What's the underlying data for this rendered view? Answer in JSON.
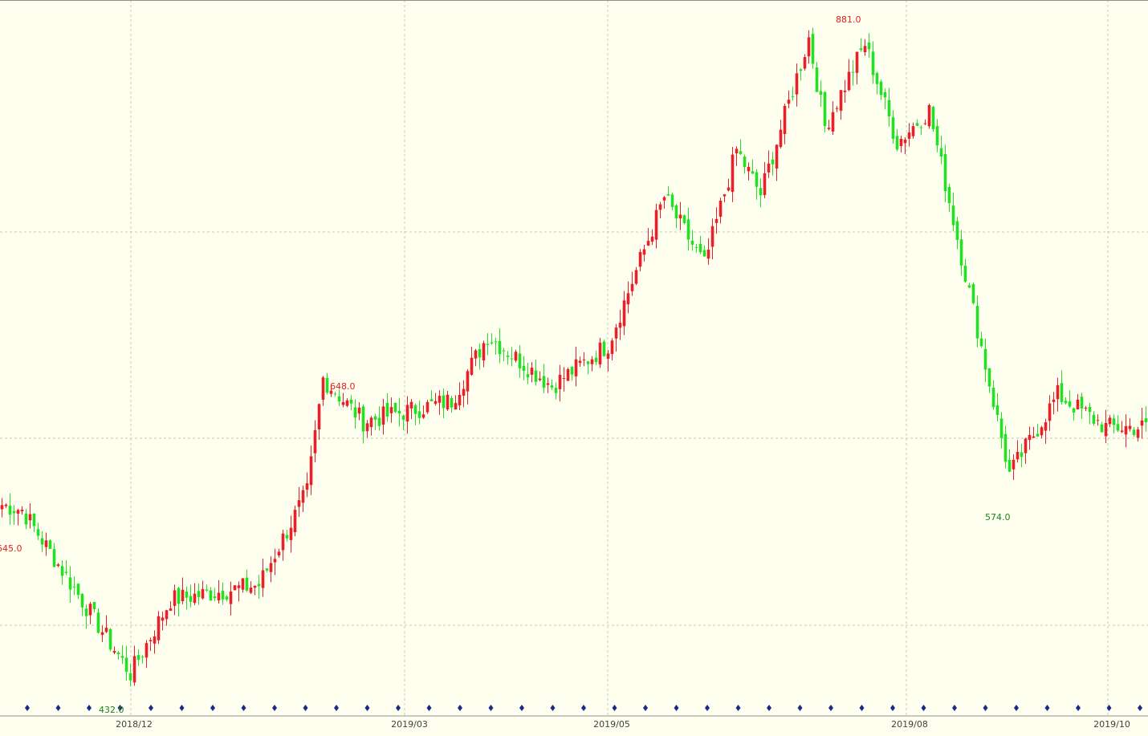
{
  "chart_data": {
    "type": "candlestick",
    "title": "",
    "xlabel": "",
    "ylabel": "",
    "ylim": [
      432,
      881
    ],
    "grid": true,
    "x_tick_labels": [
      "2018/12",
      "2019/03",
      "2019/05",
      "2019/08",
      "2019/10"
    ],
    "colors": {
      "up": "#e8202a",
      "down": "#22e024",
      "background": "#fffff0",
      "grid": "#c8c8b8",
      "marker": "#1a2a8c"
    },
    "annotations": [
      {
        "text": "645.0",
        "value": 645.0,
        "color": "#e02020"
      },
      {
        "text": "432.0",
        "value": 432.0,
        "color": "#208020"
      },
      {
        "text": "648.0",
        "value": 648.0,
        "color": "#e02020"
      },
      {
        "text": "881.0",
        "value": 881.0,
        "color": "#e02020"
      },
      {
        "text": "574.0",
        "value": 574.0,
        "color": "#208020"
      }
    ],
    "event_marker_count": 37,
    "segments": [
      {
        "from": 560,
        "to": 556,
        "bars": 6
      },
      {
        "from": 556,
        "to": 445,
        "bars": 27
      },
      {
        "from": 445,
        "to": 495,
        "bars": 10
      },
      {
        "from": 495,
        "to": 505,
        "bars": 22
      },
      {
        "from": 505,
        "to": 568,
        "bars": 12
      },
      {
        "from": 568,
        "to": 645,
        "bars": 4
      },
      {
        "from": 645,
        "to": 616,
        "bars": 10
      },
      {
        "from": 616,
        "to": 630,
        "bars": 22
      },
      {
        "from": 630,
        "to": 674,
        "bars": 9
      },
      {
        "from": 674,
        "to": 640,
        "bars": 16
      },
      {
        "from": 640,
        "to": 668,
        "bars": 14
      },
      {
        "from": 668,
        "to": 768,
        "bars": 14
      },
      {
        "from": 768,
        "to": 722,
        "bars": 10
      },
      {
        "from": 722,
        "to": 800,
        "bars": 8
      },
      {
        "from": 800,
        "to": 770,
        "bars": 6
      },
      {
        "from": 770,
        "to": 876,
        "bars": 12
      },
      {
        "from": 876,
        "to": 816,
        "bars": 4
      },
      {
        "from": 816,
        "to": 872,
        "bars": 10
      },
      {
        "from": 872,
        "to": 805,
        "bars": 8
      },
      {
        "from": 805,
        "to": 827,
        "bars": 8
      },
      {
        "from": 827,
        "to": 580,
        "bars": 20
      },
      {
        "from": 580,
        "to": 634,
        "bars": 12
      },
      {
        "from": 634,
        "to": 612,
        "bars": 12
      },
      {
        "from": 612,
        "to": 612,
        "bars": 10
      }
    ]
  }
}
